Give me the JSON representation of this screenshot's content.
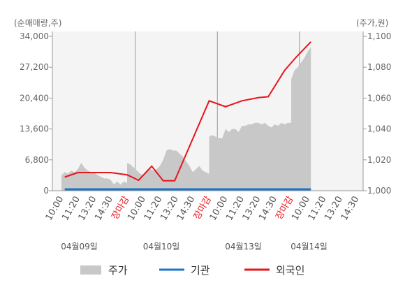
{
  "chart_data": {
    "type": "line",
    "left_axis_unit": "(순매매량,주)",
    "right_axis_unit": "(주가,원)",
    "left_ylim": [
      0,
      34000
    ],
    "left_yticks": [
      "0",
      "6,800",
      "13,600",
      "20,400",
      "27,200",
      "34,000"
    ],
    "left_ytick_values": [
      0,
      6800,
      13600,
      20400,
      27200,
      34000
    ],
    "right_ylim": [
      1000,
      1100
    ],
    "right_yticks": [
      "1,000",
      "1,020",
      "1,040",
      "1,060",
      "1,080",
      "1,100"
    ],
    "right_ytick_values": [
      1000,
      1020,
      1040,
      1060,
      1080,
      1100
    ],
    "x_ticks": [
      {
        "label": "10:00",
        "style": "normal"
      },
      {
        "label": "11:20",
        "style": "normal"
      },
      {
        "label": "13:20",
        "style": "normal"
      },
      {
        "label": "14:30",
        "style": "normal"
      },
      {
        "label": "장마감",
        "style": "red"
      },
      {
        "label": "10:00",
        "style": "normal"
      },
      {
        "label": "11:20",
        "style": "normal"
      },
      {
        "label": "13:20",
        "style": "normal"
      },
      {
        "label": "14:30",
        "style": "normal"
      },
      {
        "label": "장마감",
        "style": "red"
      },
      {
        "label": "10:00",
        "style": "normal"
      },
      {
        "label": "11:20",
        "style": "normal"
      },
      {
        "label": "13:20",
        "style": "normal"
      },
      {
        "label": "14:30",
        "style": "normal"
      },
      {
        "label": "장마감",
        "style": "red"
      },
      {
        "label": "10:00",
        "style": "normal"
      },
      {
        "label": "11:20",
        "style": "normal"
      },
      {
        "label": "13:20",
        "style": "normal"
      },
      {
        "label": "14:30",
        "style": "normal"
      }
    ],
    "dates": [
      {
        "label": "04월09일",
        "tick_index": 1
      },
      {
        "label": "04월10일",
        "tick_index": 6
      },
      {
        "label": "04월13일",
        "tick_index": 11
      },
      {
        "label": "04월14일",
        "tick_index": 15
      }
    ],
    "day_boundaries": [
      4,
      9,
      14
    ],
    "price_series": {
      "name": "주가",
      "color": "#c8c8c8",
      "x": [
        0,
        0.2,
        0.4,
        0.6,
        0.8,
        1.0,
        1.2,
        1.4,
        1.6,
        1.8,
        2.0,
        2.2,
        2.4,
        2.6,
        2.8,
        3.0,
        3.2,
        3.4,
        3.6,
        3.8,
        4.0,
        4.0,
        4.2,
        4.4,
        4.6,
        4.8,
        5.0,
        5.2,
        5.4,
        5.6,
        5.8,
        6.0,
        6.2,
        6.4,
        6.6,
        6.8,
        7.0,
        7.2,
        7.4,
        7.6,
        7.8,
        8.0,
        8.2,
        8.4,
        8.6,
        8.8,
        9.0,
        9.0,
        9.2,
        9.4,
        9.6,
        9.8,
        10.0,
        10.2,
        10.4,
        10.6,
        10.8,
        11.0,
        11.2,
        11.4,
        11.6,
        11.8,
        12.0,
        12.2,
        12.4,
        12.6,
        12.8,
        13.0,
        13.2,
        13.4,
        13.6,
        13.8,
        14.0,
        14.0,
        14.2,
        14.4,
        14.6,
        14.8,
        15.0,
        15.2
      ],
      "values": [
        1010,
        1012,
        1011,
        1013,
        1012,
        1014,
        1018,
        1015,
        1013,
        1012,
        1012,
        1010,
        1009,
        1008,
        1008,
        1007,
        1004,
        1006,
        1004,
        1006,
        1005,
        1018,
        1017,
        1015,
        1013,
        1011,
        1010,
        1012,
        1014,
        1013,
        1014,
        1016,
        1020,
        1026,
        1027,
        1026,
        1026,
        1024,
        1022,
        1019,
        1016,
        1012,
        1014,
        1016,
        1013,
        1012,
        1011,
        1035,
        1036,
        1035,
        1034,
        1034,
        1040,
        1038,
        1040,
        1040,
        1038,
        1042,
        1042,
        1043,
        1043,
        1044,
        1044,
        1043,
        1044,
        1042,
        1041,
        1043,
        1042,
        1044,
        1043,
        1044,
        1044,
        1072,
        1078,
        1080,
        1083,
        1086,
        1090,
        1093
      ]
    },
    "institution_series": {
      "name": "기관",
      "color": "#1a75c9",
      "x": [
        0.2,
        15.2
      ],
      "values": [
        300,
        300
      ]
    },
    "foreign_series": {
      "name": "외국인",
      "color": "#e8141b",
      "x": [
        0.2,
        1.0,
        2.0,
        3.0,
        4.0,
        4.7,
        5.5,
        6.2,
        6.9,
        9.0,
        10.0,
        11.0,
        12.0,
        12.6,
        13.6,
        14.3,
        15.2
      ],
      "values": [
        3000,
        4000,
        4000,
        4000,
        3500,
        2300,
        5400,
        2200,
        2200,
        19800,
        18500,
        19800,
        20500,
        20700,
        26500,
        29400,
        32800
      ]
    },
    "legend": [
      {
        "label": "주가",
        "type": "area",
        "color": "#c8c8c8"
      },
      {
        "label": "기관",
        "type": "line",
        "color": "#1a75c9"
      },
      {
        "label": "외국인",
        "type": "line",
        "color": "#e8141b"
      }
    ],
    "grid": false,
    "legend_position": "bottom"
  }
}
